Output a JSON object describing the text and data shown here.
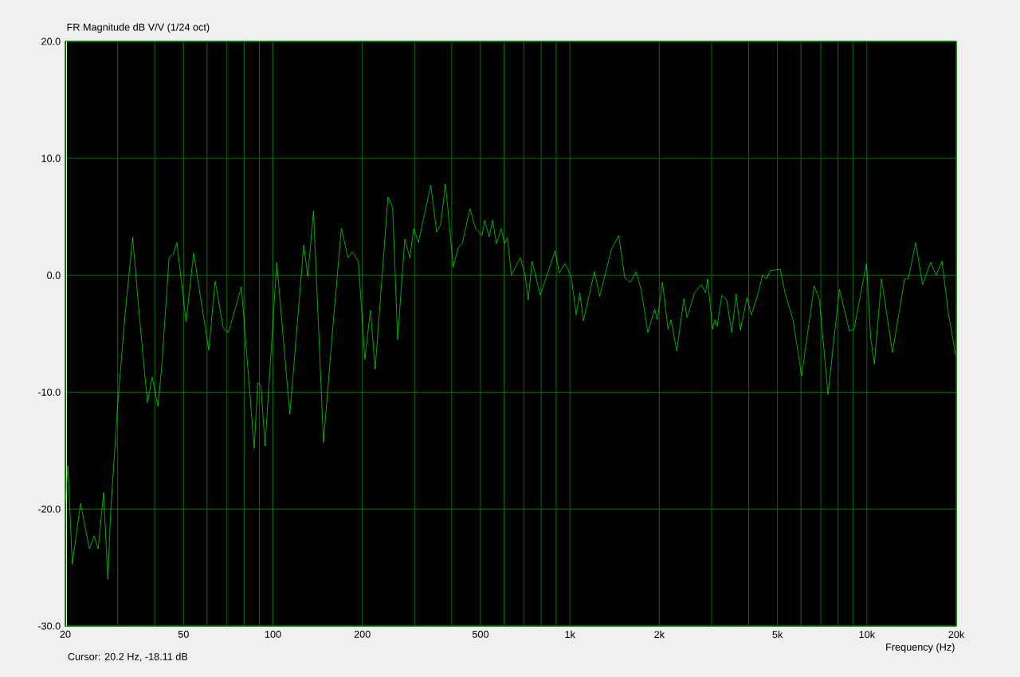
{
  "chart_data": {
    "type": "line",
    "title": "FR Magnitude dB V/V (1/24 oct)",
    "xlabel": "Frequency (Hz)",
    "annotations": [
      "Cursor: 20.2 Hz, -18.11 dB"
    ],
    "log": "x",
    "grid": true,
    "marker": "none",
    "line_style": "solid",
    "xlim": [
      20,
      20000
    ],
    "ylim": [
      -30,
      20
    ],
    "xticks": [
      20,
      {
        "value": 30,
        "label": null
      },
      {
        "value": 40,
        "label": null
      },
      50,
      {
        "value": 60,
        "label": null
      },
      {
        "value": 70,
        "label": null
      },
      {
        "value": 80,
        "label": null
      },
      {
        "value": 90,
        "label": null
      },
      100,
      200,
      {
        "value": 300,
        "label": null
      },
      {
        "value": 400,
        "label": null
      },
      500,
      {
        "value": 600,
        "label": null
      },
      {
        "value": 700,
        "label": null
      },
      {
        "value": 800,
        "label": null
      },
      {
        "value": 900,
        "label": null
      },
      {
        "value": 1000,
        "label": "1k"
      },
      {
        "value": 2000,
        "label": "2k"
      },
      {
        "value": 3000,
        "label": null
      },
      {
        "value": 4000,
        "label": null
      },
      {
        "value": 5000,
        "label": "5k"
      },
      {
        "value": 6000,
        "label": null
      },
      {
        "value": 7000,
        "label": null
      },
      {
        "value": 8000,
        "label": null
      },
      {
        "value": 9000,
        "label": null
      },
      {
        "value": 10000,
        "label": "10k"
      },
      {
        "value": 20000,
        "label": "20k"
      }
    ],
    "yticks": [
      {
        "value": -30,
        "label": "-30.0"
      },
      {
        "value": -20,
        "label": "-20.0"
      },
      {
        "value": -10,
        "label": "-10.0"
      },
      {
        "value": 0,
        "label": "0.0"
      },
      {
        "value": 10,
        "label": "10.0"
      },
      {
        "value": 20,
        "label": "20.0"
      }
    ],
    "ref_lines": [
      {
        "axis": "x",
        "value": 20.2,
        "color": "#ffff00"
      }
    ],
    "color": "#00ff00",
    "x": [
      20,
      20.4,
      21.1,
      22.5,
      24.1,
      25.0,
      25.8,
      26.9,
      27.8,
      28.4,
      30.1,
      31.8,
      33.7,
      35.8,
      37.8,
      39.2,
      41.0,
      42.2,
      44.7,
      46.2,
      47.5,
      51.0,
      54.1,
      60.8,
      63.9,
      68.0,
      70.8,
      78.3,
      86.5,
      88.9,
      91.1,
      94.1,
      103,
      114,
      127,
      131,
      137,
      148,
      158,
      170,
      179,
      185,
      194,
      204,
      213,
      221,
      244,
      253,
      263,
      278,
      289,
      298,
      309,
      340,
      356,
      367,
      381,
      405,
      421,
      434,
      461,
      481,
      506,
      516,
      535,
      549,
      566,
      587,
      602,
      616,
      635,
      681,
      707,
      724,
      746,
      795,
      892,
      920,
      963,
      1010,
      1050,
      1080,
      1110,
      1210,
      1260,
      1380,
      1460,
      1530,
      1600,
      1670,
      1740,
      1830,
      1930,
      1970,
      2050,
      2140,
      2190,
      2290,
      2420,
      2480,
      2630,
      2770,
      2860,
      2910,
      3020,
      3080,
      3130,
      3250,
      3370,
      3510,
      3630,
      3750,
      3950,
      4080,
      4310,
      4450,
      4590,
      4730,
      5110,
      5300,
      5640,
      6030,
      6650,
      6920,
      7400,
      8080,
      8740,
      9050,
      9970,
      10300,
      10600,
      11200,
      12200,
      13400,
      13800,
      14600,
      15400,
      16400,
      17100,
      17900,
      18800,
      19900
    ],
    "values": [
      -19.4,
      -16.3,
      -24.7,
      -19.5,
      -23.4,
      -22.3,
      -23.4,
      -18.6,
      -26.0,
      -20.3,
      -10.6,
      -3.3,
      3.2,
      -4.5,
      -10.9,
      -8.7,
      -11.2,
      -7.9,
      1.5,
      1.8,
      2.8,
      -4.0,
      1.9,
      -6.4,
      -0.5,
      -4.5,
      -4.9,
      -1.0,
      -14.8,
      -9.2,
      -9.4,
      -14.6,
      1.1,
      -11.9,
      2.6,
      -0.1,
      5.5,
      -14.3,
      -5.4,
      4.0,
      1.5,
      2.0,
      1.2,
      -7.2,
      -3.0,
      -8.0,
      6.7,
      5.8,
      -5.5,
      3.1,
      1.5,
      4.0,
      2.8,
      7.7,
      3.7,
      4.3,
      7.8,
      0.7,
      2.4,
      2.7,
      5.7,
      4.0,
      3.4,
      4.7,
      3.3,
      4.7,
      2.7,
      4.0,
      2.7,
      3.2,
      0.0,
      1.5,
      0.0,
      -2.1,
      1.2,
      -1.7,
      2.1,
      0.2,
      1.0,
      -0.1,
      -3.4,
      -1.5,
      -3.9,
      0.3,
      -1.8,
      2.2,
      3.4,
      -0.2,
      -0.6,
      0.3,
      -1.3,
      -4.9,
      -2.9,
      -3.8,
      -0.6,
      -4.6,
      -3.8,
      -6.5,
      -2.0,
      -3.6,
      -1.5,
      -0.8,
      -1.5,
      -0.3,
      -4.6,
      -3.8,
      -4.4,
      -1.7,
      -2.1,
      -4.9,
      -1.6,
      -4.7,
      -1.9,
      -3.4,
      -1.5,
      0.0,
      -0.3,
      0.4,
      0.5,
      -1.5,
      -3.8,
      -8.6,
      -0.9,
      -2.1,
      -10.2,
      -1.2,
      -4.8,
      -4.6,
      1.0,
      -5.3,
      -7.6,
      -0.3,
      -6.6,
      -0.3,
      -0.3,
      2.8,
      -0.8,
      1.1,
      0.0,
      1.2,
      -3.2,
      -6.8
    ]
  }
}
